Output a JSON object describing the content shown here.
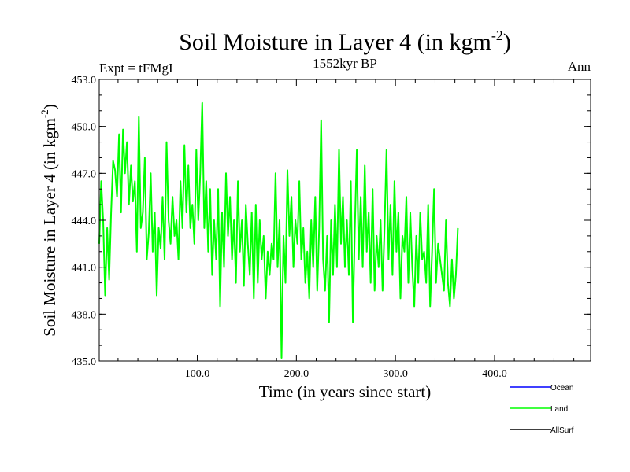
{
  "chart_data": {
    "type": "line",
    "title": "Soil Moisture in Layer 4 (in kgm",
    "title_sup": "-2",
    "title_close": ")",
    "subtitle": "1552kyr BP",
    "left_label": "Expt = tFMgI",
    "right_label": "Ann",
    "xlabel": "Time (in years since start)",
    "ylabel": "Soil Moisture in Layer 4 (in kgm",
    "ylabel_sup": "-2",
    "ylabel_close": ")",
    "xlim": [
      1,
      497
    ],
    "ylim": [
      435.0,
      453.0
    ],
    "x_ticks": [
      100,
      200,
      300,
      400
    ],
    "x_tick_labels": [
      "100.0",
      "200.0",
      "300.0",
      "400.0"
    ],
    "y_ticks": [
      435,
      438,
      441,
      444,
      447,
      450,
      453
    ],
    "y_tick_labels": [
      "435.0",
      "438.0",
      "441.0",
      "444.0",
      "447.0",
      "450.0",
      "453.0"
    ],
    "series": [
      {
        "name": "Land",
        "color": "#00ff00",
        "x_start": 1,
        "x_step": 2,
        "values": [
          442.5,
          446.5,
          444.0,
          439.2,
          443.5,
          440.2,
          444.5,
          447.8,
          447.2,
          445.5,
          449.5,
          444.5,
          449.8,
          447.0,
          449.0,
          445.0,
          447.5,
          445.2,
          446.5,
          442.0,
          450.6,
          443.5,
          444.5,
          448.0,
          441.5,
          443.2,
          447.0,
          442.0,
          444.5,
          439.2,
          443.5,
          442.2,
          445.5,
          441.5,
          449.0,
          444.0,
          442.5,
          445.5,
          443.0,
          444.0,
          441.5,
          446.5,
          443.5,
          448.8,
          444.5,
          447.5,
          443.5,
          445.0,
          442.5,
          448.5,
          444.0,
          447.0,
          451.5,
          443.5,
          446.5,
          442.0,
          446.0,
          440.5,
          444.0,
          441.5,
          446.0,
          438.5,
          444.5,
          441.0,
          447.0,
          443.0,
          445.5,
          441.5,
          444.0,
          440.0,
          446.5,
          442.0,
          444.0,
          439.8,
          445.0,
          442.5,
          440.5,
          444.5,
          439.0,
          445.0,
          440.0,
          444.0,
          441.5,
          443.0,
          439.0,
          442.0,
          440.5,
          442.5,
          441.5,
          447.0,
          441.0,
          444.0,
          435.2,
          443.0,
          440.0,
          447.2,
          443.0,
          445.5,
          441.0,
          444.0,
          442.5,
          446.5,
          441.5,
          443.5,
          440.0,
          442.0,
          439.0,
          444.0,
          441.0,
          445.5,
          439.5,
          443.5,
          450.4,
          441.5,
          439.5,
          443.0,
          437.5,
          444.0,
          440.5,
          445.0,
          441.0,
          448.5,
          442.5,
          445.5,
          441.0,
          444.0,
          440.5,
          446.5,
          437.5,
          443.5,
          448.5,
          441.5,
          445.5,
          441.0,
          447.5,
          442.0,
          444.5,
          440.0,
          446.0,
          439.5,
          443.0,
          441.0,
          444.0,
          439.5,
          443.5,
          448.5,
          441.5,
          445.0,
          440.5,
          446.5,
          442.0,
          444.5,
          439.0,
          443.0,
          442.0,
          445.5,
          440.0,
          444.5,
          441.0,
          438.5,
          443.0,
          440.0,
          444.5,
          441.5,
          442.0,
          440.0,
          445.0,
          438.5,
          442.0,
          446.0,
          440.0,
          442.5,
          441.5,
          440.5,
          439.5,
          444.0,
          440.0,
          438.5,
          441.5,
          439.0,
          440.5,
          443.5
        ]
      }
    ],
    "legend": {
      "placement": "bottom-right",
      "entries": [
        {
          "label": "Ocean",
          "color": "#0000ff"
        },
        {
          "label": "Land",
          "color": "#00ff00"
        },
        {
          "label": "AllSurf",
          "color": "#000000"
        }
      ]
    }
  }
}
